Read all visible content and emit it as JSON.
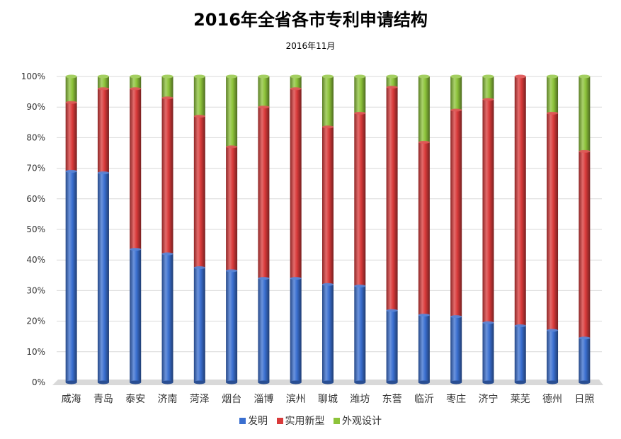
{
  "chart_data": {
    "type": "bar",
    "stacked": true,
    "percent": true,
    "title": "2016年全省各市专利申请结构",
    "subtitle": "2016年11月",
    "categories": [
      "威海",
      "青岛",
      "泰安",
      "济南",
      "菏泽",
      "烟台",
      "淄博",
      "滨州",
      "聊城",
      "潍坊",
      "东营",
      "临沂",
      "枣庄",
      "济宁",
      "莱芜",
      "德州",
      "日照"
    ],
    "series": [
      {
        "name": "发明",
        "color": "#3a6fd0",
        "values": [
          69,
          68.5,
          43.5,
          42,
          37.5,
          36.5,
          34,
          34,
          32,
          31.5,
          23.5,
          22,
          21.5,
          19.5,
          18.5,
          17,
          14.5
        ]
      },
      {
        "name": "实用新型",
        "color": "#d93a3a",
        "values": [
          22.5,
          27.5,
          52.5,
          51,
          49.5,
          40.5,
          56,
          62,
          51.5,
          56.5,
          73,
          56.5,
          67.5,
          73,
          81.5,
          71,
          61
        ]
      },
      {
        "name": "外观设计",
        "color": "#8dc33a",
        "values": [
          8.5,
          4,
          4,
          7,
          13,
          23,
          10,
          4,
          16.5,
          12,
          3.5,
          21.5,
          11,
          7.5,
          0,
          12,
          24.5
        ]
      }
    ],
    "ylim": [
      0,
      100
    ],
    "yticks": [
      "0%",
      "10%",
      "20%",
      "30%",
      "40%",
      "50%",
      "60%",
      "70%",
      "80%",
      "90%",
      "100%"
    ],
    "grid": true,
    "legend_position": "bottom"
  }
}
